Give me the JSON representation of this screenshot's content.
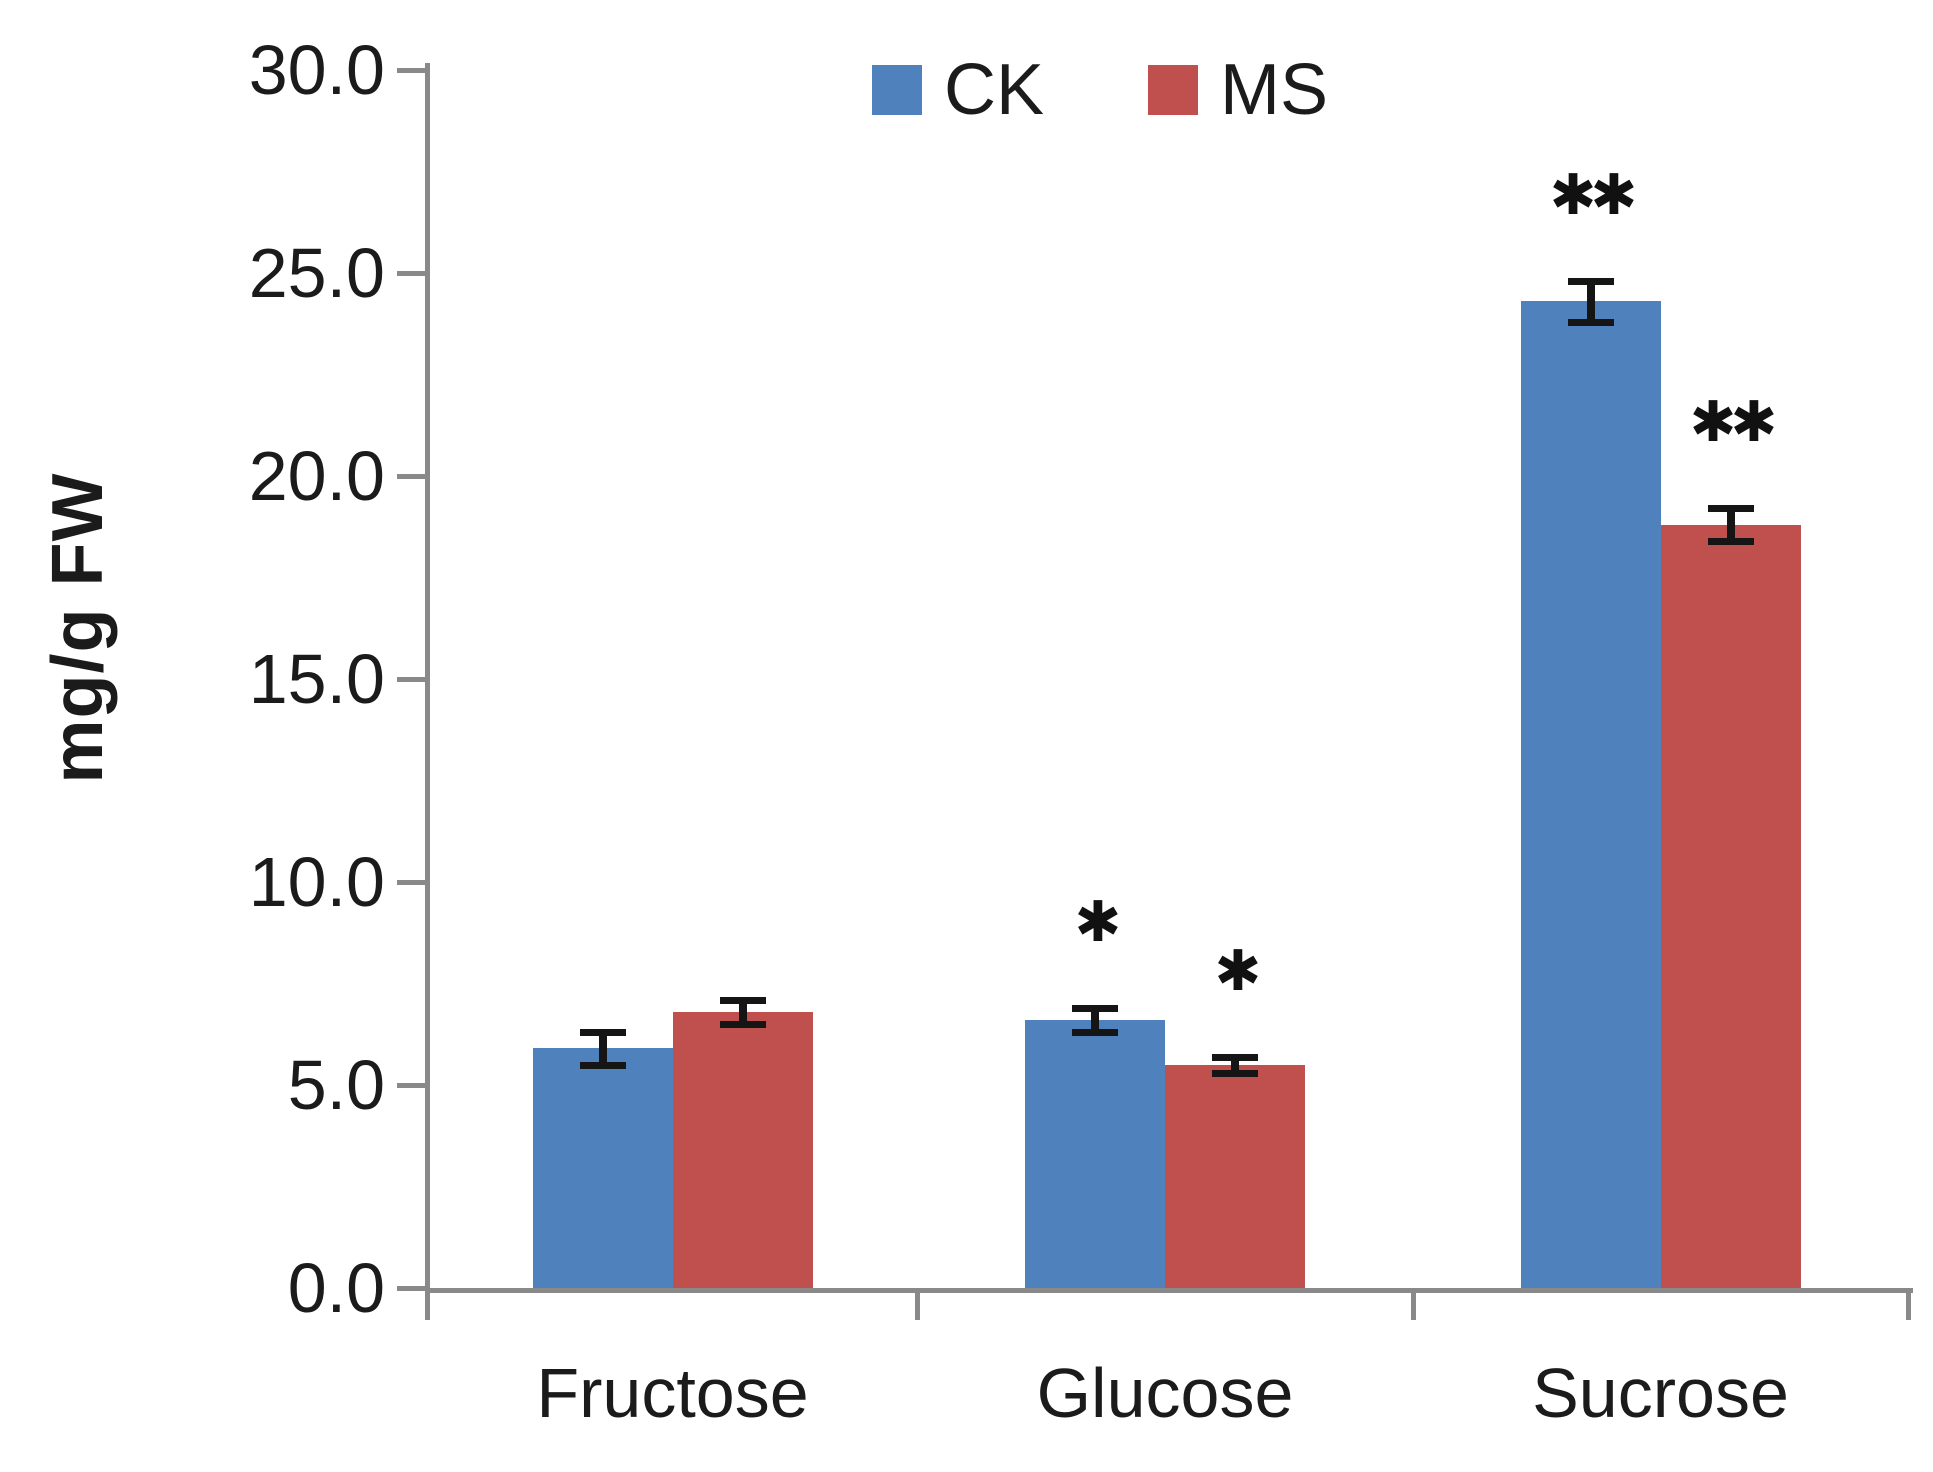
{
  "chart_data": {
    "type": "bar",
    "title": "",
    "xlabel": "",
    "ylabel": "mg/g FW",
    "categories": [
      "Fructose",
      "Glucose",
      "Sucrose"
    ],
    "series": [
      {
        "name": "CK",
        "color": "#4F81BD",
        "values": [
          5.9,
          6.6,
          24.3
        ],
        "errors": [
          0.4,
          0.3,
          0.5
        ],
        "significance": [
          "",
          "*",
          "**"
        ]
      },
      {
        "name": "MS",
        "color": "#C0504D",
        "values": [
          6.8,
          5.5,
          18.8
        ],
        "errors": [
          0.3,
          0.2,
          0.4
        ],
        "significance": [
          "",
          "*",
          "**"
        ]
      }
    ],
    "ylim": [
      0,
      30
    ],
    "ytick_step": 5,
    "ytick_labels": [
      "0.0",
      "5.0",
      "10.0",
      "15.0",
      "20.0",
      "25.0",
      "30.0"
    ],
    "grid": false,
    "error_bars": true,
    "legend_position": "top-center"
  },
  "colors": {
    "axis": "#898989",
    "text": "#1b1b1b",
    "error_bar": "#151515",
    "background": "#ffffff"
  }
}
